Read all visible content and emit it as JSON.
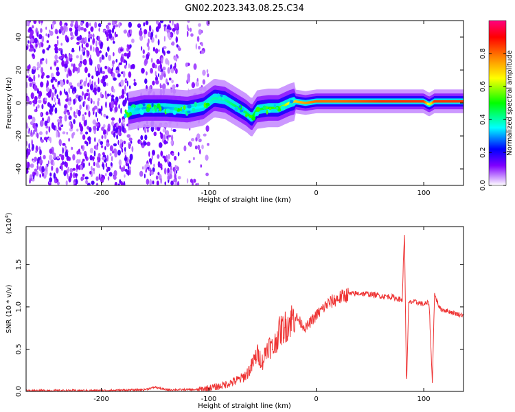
{
  "title": "GN02.2023.343.08.25.C34",
  "chart_data": [
    {
      "type": "heatmap",
      "xlabel": "Height of straight line (km)",
      "ylabel": "Frequency (Hz)",
      "xlim": [
        -270,
        137
      ],
      "ylim": [
        -50,
        50
      ],
      "xticks": [
        -200,
        -100,
        0,
        100
      ],
      "yticks": [
        -40,
        -20,
        0,
        20,
        40
      ],
      "colorbar": {
        "label": "Normalized spectral amplitude",
        "range": [
          0,
          1
        ],
        "ticks": [
          0.0,
          0.2,
          0.4,
          0.6,
          0.8
        ],
        "tick_labels": [
          "0.0",
          "0.2",
          "0.4",
          "0.6",
          "0.8"
        ],
        "colors": [
          "#ffffff",
          "#8000ff",
          "#0000ff",
          "#00ffff",
          "#00ff00",
          "#ffff00",
          "#ff8000",
          "#ff0000",
          "#ff0080"
        ]
      },
      "ridge": {
        "x": [
          -175,
          -160,
          -140,
          -120,
          -105,
          -95,
          -85,
          -75,
          -65,
          -60,
          -55,
          -45,
          -35,
          -25,
          -20,
          -10,
          0,
          20,
          40,
          60,
          70,
          80,
          90,
          100,
          105,
          110,
          137
        ],
        "y": [
          -5,
          -3,
          -3,
          -4,
          -2,
          3,
          2,
          -2,
          -6,
          -9,
          -4,
          -3,
          -3,
          0,
          1,
          0,
          1,
          1,
          1,
          1,
          1,
          1,
          1,
          1,
          -1,
          1,
          1
        ],
        "amplitude": [
          0.35,
          0.3,
          0.3,
          0.35,
          0.35,
          0.4,
          0.4,
          0.45,
          0.45,
          0.5,
          0.45,
          0.5,
          0.55,
          0.65,
          0.7,
          0.75,
          0.8,
          0.8,
          0.82,
          0.85,
          0.85,
          0.85,
          0.85,
          0.85,
          0.6,
          0.85,
          0.85
        ]
      },
      "noise_region_xlim": [
        -270,
        -100
      ]
    },
    {
      "type": "line",
      "xlabel": "Height of straight line (km)",
      "ylabel": "SNR (10 * v/v)",
      "y_multiplier": "(x10",
      "y_multiplier_exp": "4",
      "y_multiplier_close": ")",
      "xlim": [
        -270,
        137
      ],
      "ylim": [
        0,
        1.95
      ],
      "xticks": [
        -200,
        -100,
        0,
        100
      ],
      "yticks": [
        0.0,
        0.5,
        1.0,
        1.5
      ],
      "ytick_labels": [
        "0.0",
        "0.5",
        "1.0",
        "1.5"
      ],
      "series": [
        {
          "color": "#ee3333",
          "x": [
            -270,
            -200,
            -160,
            -150,
            -140,
            -110,
            -100,
            -90,
            -80,
            -70,
            -65,
            -60,
            -55,
            -50,
            -45,
            -40,
            -35,
            -30,
            -25,
            -20,
            -15,
            -10,
            0,
            10,
            20,
            30,
            40,
            50,
            60,
            70,
            75,
            80,
            82,
            84,
            86,
            90,
            95,
            100,
            105,
            108,
            110,
            115,
            120,
            130,
            137
          ],
          "y": [
            0.01,
            0.01,
            0.02,
            0.05,
            0.02,
            0.02,
            0.04,
            0.06,
            0.1,
            0.15,
            0.2,
            0.3,
            0.45,
            0.35,
            0.55,
            0.5,
            0.7,
            0.75,
            0.82,
            0.9,
            0.82,
            0.75,
            0.9,
            1.03,
            1.1,
            1.15,
            1.16,
            1.15,
            1.13,
            1.12,
            1.1,
            1.08,
            1.9,
            0.05,
            1.05,
            1.06,
            1.05,
            1.03,
            1.05,
            0.1,
            1.15,
            0.98,
            0.96,
            0.92,
            0.9
          ]
        }
      ]
    }
  ]
}
